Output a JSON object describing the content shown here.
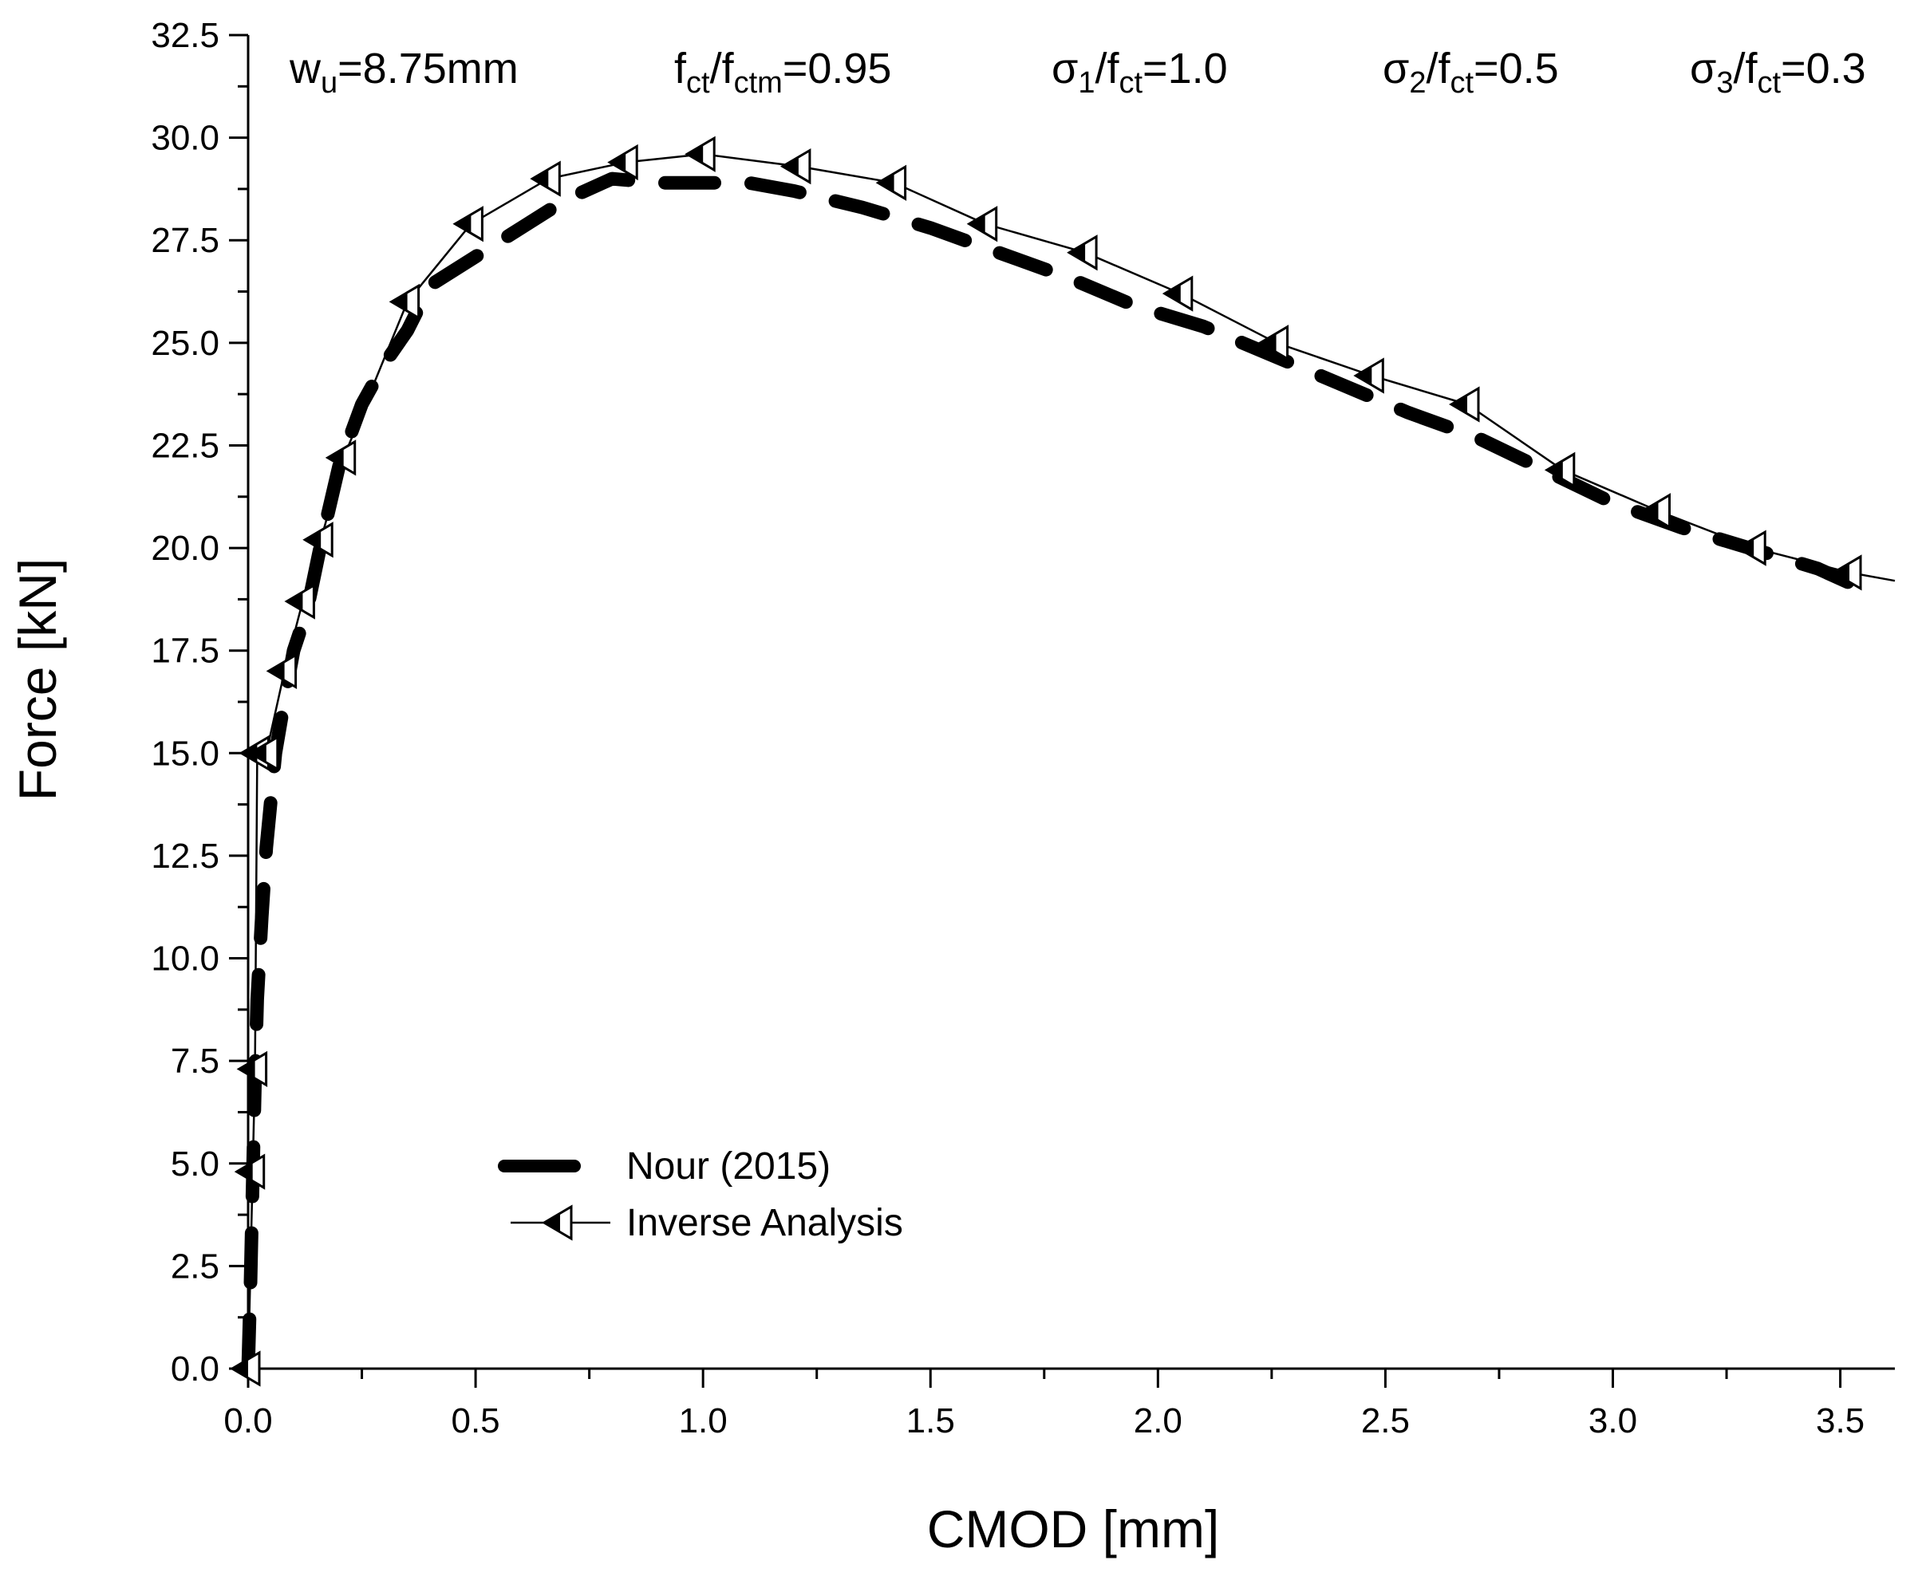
{
  "chart_data": {
    "type": "line",
    "xlabel": "CMOD [mm]",
    "ylabel": "Force [kN]",
    "xlim": [
      0.0,
      3.62
    ],
    "ylim": [
      0.0,
      32.5
    ],
    "xticks": [
      "0.0",
      "0.5",
      "1.0",
      "1.5",
      "2.0",
      "2.5",
      "3.0",
      "3.5"
    ],
    "xtick_values": [
      0.0,
      0.5,
      1.0,
      1.5,
      2.0,
      2.5,
      3.0,
      3.5
    ],
    "yticks": [
      "0.0",
      "2.5",
      "5.0",
      "7.5",
      "10.0",
      "12.5",
      "15.0",
      "17.5",
      "20.0",
      "22.5",
      "25.0",
      "27.5",
      "30.0",
      "32.5"
    ],
    "ytick_values": [
      0.0,
      2.5,
      5.0,
      7.5,
      10.0,
      12.5,
      15.0,
      17.5,
      20.0,
      22.5,
      25.0,
      27.5,
      30.0,
      32.5
    ],
    "annotations": [
      {
        "base": "w",
        "sub": "u",
        "rest": "=8.75mm"
      },
      {
        "base": "f",
        "sub": "ct",
        "mid": "/f",
        "sub2": "ctm",
        "rest": "=0.95"
      },
      {
        "base": "σ",
        "sub": "1",
        "mid": "/f",
        "sub2": "ct",
        "rest": "=1.0"
      },
      {
        "base": "σ",
        "sub": "2",
        "mid": "/f",
        "sub2": "ct",
        "rest": "=0.5"
      },
      {
        "base": "σ",
        "sub": "3",
        "mid": "/f",
        "sub2": "ct",
        "rest": "=0.3"
      }
    ],
    "legend_position": "lower-left",
    "series": [
      {
        "name": "Nour (2015)",
        "style": "thick-dashed",
        "color": "#000000",
        "x": [
          0.0,
          0.005,
          0.01,
          0.015,
          0.02,
          0.03,
          0.04,
          0.06,
          0.08,
          0.1,
          0.13,
          0.16,
          0.2,
          0.25,
          0.3,
          0.35,
          0.4,
          0.5,
          0.6,
          0.7,
          0.8,
          0.9,
          1.0,
          1.1,
          1.2,
          1.35,
          1.5,
          1.65,
          1.8,
          1.95,
          2.1,
          2.25,
          2.4,
          2.55,
          2.7,
          2.85,
          3.0,
          3.15,
          3.3,
          3.45,
          3.53
        ],
        "y": [
          0.0,
          2.0,
          4.5,
          7.0,
          9.0,
          11.0,
          12.7,
          15.0,
          16.3,
          17.5,
          18.5,
          20.1,
          22.0,
          23.5,
          24.5,
          25.3,
          26.4,
          27.1,
          27.8,
          28.5,
          29.0,
          28.9,
          28.9,
          28.9,
          28.7,
          28.3,
          27.8,
          27.2,
          26.6,
          25.9,
          25.4,
          24.7,
          24.0,
          23.3,
          22.7,
          21.9,
          21.1,
          20.5,
          20.0,
          19.5,
          19.1
        ]
      },
      {
        "name": "Inverse Analysis",
        "style": "thin-line-left-triangle-markers",
        "color": "#000000",
        "x": [
          0.0,
          0.01,
          0.015,
          0.02,
          0.04,
          0.08,
          0.12,
          0.16,
          0.21,
          0.35,
          0.49,
          0.66,
          0.83,
          1.0,
          1.21,
          1.42,
          1.62,
          1.84,
          2.05,
          2.26,
          2.47,
          2.68,
          2.89,
          3.1,
          3.31,
          3.52,
          3.62
        ],
        "y": [
          0.0,
          4.8,
          7.3,
          15.0,
          15.0,
          17.0,
          18.7,
          20.2,
          22.2,
          26.0,
          27.9,
          29.0,
          29.4,
          29.6,
          29.3,
          28.9,
          27.9,
          27.2,
          26.2,
          25.0,
          24.2,
          23.5,
          21.9,
          20.9,
          20.0,
          19.4,
          19.2
        ]
      }
    ]
  }
}
